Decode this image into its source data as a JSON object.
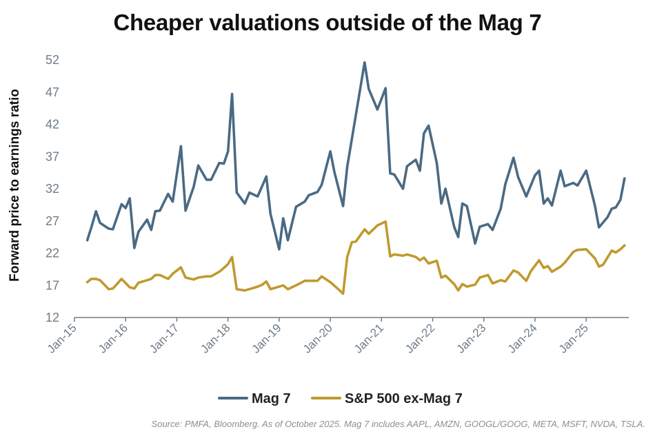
{
  "chart_data": {
    "type": "line",
    "title": "Cheaper valuations outside of the Mag 7",
    "xlabel": "",
    "ylabel": "Forward price to earnings ratio",
    "ylim": [
      12,
      52
    ],
    "yticks": [
      12,
      17,
      22,
      27,
      32,
      37,
      42,
      47,
      52
    ],
    "xlim": [
      2015.0,
      2025.833
    ],
    "xticks": [
      {
        "label": "Jan-15",
        "x": 2015.0
      },
      {
        "label": "Jan-16",
        "x": 2016.0
      },
      {
        "label": "Jan-17",
        "x": 2017.0
      },
      {
        "label": "Jan-18",
        "x": 2018.0
      },
      {
        "label": "Jan-19",
        "x": 2019.0
      },
      {
        "label": "Jan-20",
        "x": 2020.0
      },
      {
        "label": "Jan-21",
        "x": 2021.0
      },
      {
        "label": "Jan-22",
        "x": 2022.0
      },
      {
        "label": "Jan-23",
        "x": 2023.0
      },
      {
        "label": "Jan-24",
        "x": 2024.0
      },
      {
        "label": "Jan-25",
        "x": 2025.0
      }
    ],
    "grid": false,
    "legend_position": "bottom",
    "series": [
      {
        "name": "Mag 7",
        "color": "#4a6a84",
        "points": [
          [
            2015.25,
            24.0
          ],
          [
            2015.33,
            26.0
          ],
          [
            2015.42,
            28.5
          ],
          [
            2015.5,
            26.7
          ],
          [
            2015.67,
            25.8
          ],
          [
            2015.75,
            25.7
          ],
          [
            2015.92,
            29.6
          ],
          [
            2016.0,
            29.0
          ],
          [
            2016.08,
            30.5
          ],
          [
            2016.17,
            22.8
          ],
          [
            2016.25,
            25.3
          ],
          [
            2016.42,
            27.2
          ],
          [
            2016.5,
            25.6
          ],
          [
            2016.58,
            28.5
          ],
          [
            2016.67,
            28.6
          ],
          [
            2016.83,
            31.2
          ],
          [
            2016.92,
            30.0
          ],
          [
            2017.08,
            38.6
          ],
          [
            2017.17,
            28.6
          ],
          [
            2017.33,
            32.3
          ],
          [
            2017.42,
            35.6
          ],
          [
            2017.58,
            33.4
          ],
          [
            2017.67,
            33.4
          ],
          [
            2017.83,
            36.0
          ],
          [
            2017.92,
            35.9
          ],
          [
            2018.0,
            37.8
          ],
          [
            2018.08,
            46.7
          ],
          [
            2018.17,
            31.4
          ],
          [
            2018.33,
            29.7
          ],
          [
            2018.42,
            31.4
          ],
          [
            2018.58,
            30.8
          ],
          [
            2018.75,
            33.9
          ],
          [
            2018.83,
            28.1
          ],
          [
            2019.0,
            22.6
          ],
          [
            2019.08,
            27.4
          ],
          [
            2019.17,
            24.0
          ],
          [
            2019.33,
            29.2
          ],
          [
            2019.5,
            30.0
          ],
          [
            2019.58,
            31.0
          ],
          [
            2019.75,
            31.5
          ],
          [
            2019.83,
            32.6
          ],
          [
            2020.0,
            37.8
          ],
          [
            2020.08,
            34.6
          ],
          [
            2020.25,
            29.3
          ],
          [
            2020.33,
            35.4
          ],
          [
            2020.5,
            43.5
          ],
          [
            2020.67,
            51.6
          ],
          [
            2020.75,
            47.5
          ],
          [
            2020.92,
            44.3
          ],
          [
            2021.08,
            47.6
          ],
          [
            2021.17,
            34.4
          ],
          [
            2021.25,
            34.2
          ],
          [
            2021.42,
            32.0
          ],
          [
            2021.5,
            35.5
          ],
          [
            2021.67,
            36.5
          ],
          [
            2021.75,
            34.8
          ],
          [
            2021.83,
            40.6
          ],
          [
            2021.92,
            41.8
          ],
          [
            2022.08,
            36.0
          ],
          [
            2022.17,
            29.7
          ],
          [
            2022.25,
            32.0
          ],
          [
            2022.42,
            26.1
          ],
          [
            2022.5,
            24.5
          ],
          [
            2022.58,
            29.7
          ],
          [
            2022.67,
            29.3
          ],
          [
            2022.83,
            23.5
          ],
          [
            2022.92,
            26.1
          ],
          [
            2023.08,
            26.5
          ],
          [
            2023.17,
            25.6
          ],
          [
            2023.33,
            28.9
          ],
          [
            2023.42,
            32.7
          ],
          [
            2023.58,
            36.8
          ],
          [
            2023.67,
            33.8
          ],
          [
            2023.83,
            30.8
          ],
          [
            2024.0,
            34.1
          ],
          [
            2024.08,
            34.8
          ],
          [
            2024.17,
            29.7
          ],
          [
            2024.25,
            30.5
          ],
          [
            2024.33,
            29.4
          ],
          [
            2024.5,
            34.8
          ],
          [
            2024.58,
            32.4
          ],
          [
            2024.75,
            32.9
          ],
          [
            2024.83,
            32.5
          ],
          [
            2025.0,
            34.8
          ],
          [
            2025.17,
            29.4
          ],
          [
            2025.25,
            26.0
          ],
          [
            2025.42,
            27.6
          ],
          [
            2025.5,
            28.9
          ],
          [
            2025.58,
            29.1
          ],
          [
            2025.67,
            30.3
          ],
          [
            2025.75,
            33.6
          ]
        ]
      },
      {
        "name": "S&P 500 ex-Mag 7",
        "color": "#c09a2e",
        "points": [
          [
            2015.25,
            17.5
          ],
          [
            2015.33,
            18.0
          ],
          [
            2015.42,
            18.0
          ],
          [
            2015.5,
            17.8
          ],
          [
            2015.67,
            16.4
          ],
          [
            2015.75,
            16.5
          ],
          [
            2015.92,
            18.0
          ],
          [
            2016.08,
            16.7
          ],
          [
            2016.17,
            16.5
          ],
          [
            2016.25,
            17.4
          ],
          [
            2016.42,
            17.8
          ],
          [
            2016.5,
            18.0
          ],
          [
            2016.58,
            18.6
          ],
          [
            2016.67,
            18.6
          ],
          [
            2016.83,
            18.0
          ],
          [
            2016.92,
            18.8
          ],
          [
            2017.08,
            19.8
          ],
          [
            2017.17,
            18.2
          ],
          [
            2017.33,
            17.9
          ],
          [
            2017.42,
            18.2
          ],
          [
            2017.58,
            18.4
          ],
          [
            2017.67,
            18.4
          ],
          [
            2017.83,
            19.1
          ],
          [
            2017.92,
            19.7
          ],
          [
            2018.0,
            20.3
          ],
          [
            2018.08,
            21.4
          ],
          [
            2018.17,
            16.4
          ],
          [
            2018.33,
            16.2
          ],
          [
            2018.5,
            16.6
          ],
          [
            2018.58,
            16.8
          ],
          [
            2018.67,
            17.1
          ],
          [
            2018.75,
            17.6
          ],
          [
            2018.83,
            16.4
          ],
          [
            2019.0,
            16.8
          ],
          [
            2019.08,
            17.0
          ],
          [
            2019.17,
            16.4
          ],
          [
            2019.33,
            17.0
          ],
          [
            2019.5,
            17.7
          ],
          [
            2019.58,
            17.7
          ],
          [
            2019.75,
            17.7
          ],
          [
            2019.83,
            18.4
          ],
          [
            2020.0,
            17.5
          ],
          [
            2020.17,
            16.3
          ],
          [
            2020.25,
            15.7
          ],
          [
            2020.33,
            21.4
          ],
          [
            2020.42,
            23.7
          ],
          [
            2020.5,
            23.8
          ],
          [
            2020.67,
            25.7
          ],
          [
            2020.75,
            25.0
          ],
          [
            2020.92,
            26.3
          ],
          [
            2021.08,
            26.9
          ],
          [
            2021.17,
            21.5
          ],
          [
            2021.25,
            21.8
          ],
          [
            2021.42,
            21.6
          ],
          [
            2021.5,
            21.8
          ],
          [
            2021.67,
            21.4
          ],
          [
            2021.75,
            20.9
          ],
          [
            2021.83,
            21.3
          ],
          [
            2021.92,
            20.4
          ],
          [
            2022.08,
            20.8
          ],
          [
            2022.17,
            18.2
          ],
          [
            2022.25,
            18.5
          ],
          [
            2022.42,
            17.2
          ],
          [
            2022.5,
            16.2
          ],
          [
            2022.58,
            17.2
          ],
          [
            2022.67,
            16.8
          ],
          [
            2022.83,
            17.1
          ],
          [
            2022.92,
            18.2
          ],
          [
            2023.08,
            18.6
          ],
          [
            2023.17,
            17.3
          ],
          [
            2023.33,
            17.8
          ],
          [
            2023.42,
            17.6
          ],
          [
            2023.58,
            19.3
          ],
          [
            2023.67,
            19.0
          ],
          [
            2023.83,
            17.7
          ],
          [
            2023.92,
            19.2
          ],
          [
            2024.08,
            20.9
          ],
          [
            2024.17,
            19.7
          ],
          [
            2024.25,
            20.0
          ],
          [
            2024.33,
            19.1
          ],
          [
            2024.5,
            19.9
          ],
          [
            2024.58,
            20.5
          ],
          [
            2024.75,
            22.2
          ],
          [
            2024.83,
            22.5
          ],
          [
            2025.0,
            22.6
          ],
          [
            2025.17,
            21.2
          ],
          [
            2025.25,
            19.9
          ],
          [
            2025.33,
            20.2
          ],
          [
            2025.5,
            22.4
          ],
          [
            2025.58,
            22.1
          ],
          [
            2025.67,
            22.6
          ],
          [
            2025.75,
            23.2
          ]
        ]
      }
    ]
  },
  "source_note": "Source: PMFA, Bloomberg. As of October 2025. Mag 7 includes AAPL, AMZN, GOOGL/GOOG, META, MSFT, NVDA, TSLA."
}
